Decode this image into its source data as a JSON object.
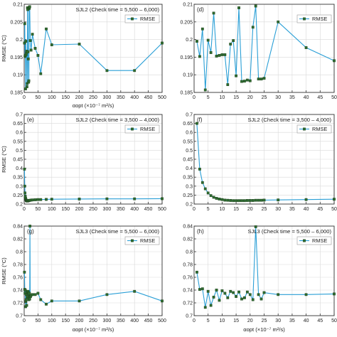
{
  "colors": {
    "line": "#2a9fd6",
    "marker": "#2e6b2e",
    "marker_edge": "#1d3f1d",
    "grid": "#d9d9d9",
    "axis": "#333333"
  },
  "chart_data": [
    {
      "type": "line",
      "panel_label": "",
      "title": "SJL2 (Check time = 5,500 – 6,000)",
      "xlabel": "αopt (×10⁻⁷ m²/s)",
      "ylabel": "RMSE (°C)",
      "xlim": [
        0,
        500
      ],
      "ylim": [
        0.185,
        0.21
      ],
      "xticks": [
        "0",
        "50",
        "100",
        "150",
        "200",
        "250",
        "300",
        "350",
        "400",
        "450",
        "500"
      ],
      "yticks": [
        "0.185",
        "0.19",
        "0.195",
        "0.2",
        "0.205",
        "0.21"
      ],
      "legend": "RMSE",
      "legend_position": "top-right",
      "grid": true,
      "x": [
        1,
        2,
        3,
        4,
        5,
        6,
        7,
        8,
        9,
        10,
        11,
        12,
        13,
        14,
        15,
        16,
        17,
        18,
        19,
        20,
        22,
        25,
        30,
        40,
        50,
        60,
        80,
        100,
        200,
        300,
        400,
        500
      ],
      "y": [
        0.199,
        0.2045,
        0.1952,
        0.1955,
        0.186,
        0.1995,
        0.1957,
        0.1962,
        0.1967,
        0.1866,
        0.1875,
        0.209,
        0.2085,
        0.1965,
        0.1945,
        0.1879,
        0.1883,
        0.2088,
        0.2092,
        0.2093,
        0.1997,
        0.197,
        0.2015,
        0.1975,
        0.1955,
        0.1903,
        0.203,
        0.1985,
        0.1987,
        0.1912,
        0.1912,
        0.199
      ]
    },
    {
      "type": "line",
      "panel_label": "(d)",
      "title": "",
      "xlabel": "",
      "ylabel": "",
      "xlim": [
        0,
        50
      ],
      "ylim": [
        0.185,
        0.21
      ],
      "xticks": [
        "0",
        "5",
        "10",
        "15",
        "20",
        "25",
        "30",
        "35",
        "40",
        "45",
        "50"
      ],
      "yticks": [
        "0.185",
        "0.19",
        "0.195",
        "0.2",
        "0.205",
        "0.21"
      ],
      "legend": "RMSE",
      "legend_position": "top-right",
      "grid": true,
      "x": [
        1,
        2,
        3,
        4,
        5,
        6,
        7,
        8,
        9,
        10,
        11,
        12,
        13,
        14,
        15,
        16,
        17,
        18,
        19,
        20,
        21,
        22,
        23,
        24,
        25,
        30,
        40,
        50
      ],
      "y": [
        0.1995,
        0.1952,
        0.203,
        0.1857,
        0.1998,
        0.1963,
        0.2075,
        0.1953,
        0.1955,
        0.1957,
        0.1957,
        0.1872,
        0.1987,
        0.1997,
        0.1897,
        0.209,
        0.1881,
        0.1882,
        0.1885,
        0.1883,
        0.2035,
        0.2095,
        0.1888,
        0.1888,
        0.189,
        0.205,
        0.1977,
        0.194
      ]
    },
    {
      "type": "line",
      "panel_label": "(e)",
      "title": "SJL2 (Check time = 3,500 – 4,000)",
      "xlabel": "",
      "ylabel": "RMSE (°C)",
      "xlim": [
        0,
        500
      ],
      "ylim": [
        0.2,
        0.7
      ],
      "xticks": [
        "0",
        "50",
        "100",
        "150",
        "200",
        "250",
        "300",
        "350",
        "400",
        "450",
        "500"
      ],
      "yticks": [
        "0.2",
        "0.25",
        "0.3",
        "0.35",
        "0.4",
        "0.45",
        "0.5",
        "0.55",
        "0.6",
        "0.65",
        "0.7"
      ],
      "legend": "RMSE",
      "legend_position": "top-right",
      "grid": true,
      "x": [
        1,
        2,
        3,
        4,
        5,
        6,
        7,
        8,
        9,
        10,
        12,
        14,
        16,
        18,
        20,
        25,
        30,
        40,
        50,
        60,
        80,
        100,
        200,
        300,
        400,
        500
      ],
      "y": [
        0.395,
        0.3,
        0.262,
        0.243,
        0.233,
        0.226,
        0.222,
        0.219,
        0.218,
        0.217,
        0.217,
        0.218,
        0.219,
        0.22,
        0.221,
        0.222,
        0.223,
        0.224,
        0.225,
        0.225,
        0.226,
        0.227,
        0.228,
        0.229,
        0.229,
        0.23
      ]
    },
    {
      "type": "line",
      "panel_label": "(f)",
      "title": "SJL2 (Check time = 3,500 – 4,000)",
      "xlabel": "",
      "ylabel": "",
      "xlim": [
        0,
        50
      ],
      "ylim": [
        0.2,
        0.7
      ],
      "xticks": [
        "0",
        "5",
        "10",
        "15",
        "20",
        "25",
        "30",
        "35",
        "40",
        "45",
        "50"
      ],
      "yticks": [
        "0.2",
        "0.25",
        "0.3",
        "0.35",
        "0.4",
        "0.45",
        "0.5",
        "0.55",
        "0.6",
        "0.65",
        "0.7"
      ],
      "legend": "RMSE",
      "legend_position": "top-right",
      "grid": true,
      "x": [
        1,
        2,
        3,
        4,
        5,
        6,
        7,
        8,
        9,
        10,
        11,
        12,
        13,
        14,
        15,
        16,
        17,
        18,
        19,
        20,
        21,
        22,
        23,
        24,
        25,
        30,
        40,
        50
      ],
      "y": [
        0.65,
        0.395,
        0.32,
        0.285,
        0.262,
        0.247,
        0.238,
        0.232,
        0.228,
        0.225,
        0.222,
        0.221,
        0.22,
        0.219,
        0.219,
        0.219,
        0.219,
        0.219,
        0.22,
        0.22,
        0.22,
        0.221,
        0.221,
        0.221,
        0.222,
        0.223,
        0.225,
        0.227
      ]
    },
    {
      "type": "line",
      "panel_label": "(g)",
      "title": "SJL3 (Check time = 5,500 – 6,000)",
      "xlabel": "αopt (×10⁻⁷ m²/s)",
      "ylabel": "RMSE (°C)",
      "xlim": [
        0,
        500
      ],
      "ylim": [
        0.7,
        0.84
      ],
      "xticks": [
        "0",
        "50",
        "100",
        "150",
        "200",
        "250",
        "300",
        "350",
        "400",
        "450",
        "500"
      ],
      "yticks": [
        "0.7",
        "0.72",
        "0.74",
        "0.76",
        "0.78",
        "0.8",
        "0.82",
        "0.84"
      ],
      "legend": "RMSE",
      "legend_position": "top-right",
      "grid": true,
      "x": [
        1,
        2,
        3,
        4,
        5,
        6,
        7,
        8,
        9,
        10,
        11,
        12,
        13,
        14,
        15,
        16,
        17,
        18,
        19,
        20,
        21,
        22,
        23,
        25,
        30,
        40,
        50,
        60,
        80,
        100,
        200,
        300,
        400,
        500
      ],
      "y": [
        0.768,
        0.741,
        0.735,
        0.74,
        0.714,
        0.722,
        0.725,
        0.733,
        0.716,
        0.737,
        0.729,
        0.73,
        0.733,
        0.738,
        0.736,
        0.734,
        0.725,
        0.728,
        0.735,
        0.726,
        0.84,
        0.73,
        0.73,
        0.732,
        0.733,
        0.733,
        0.735,
        0.725,
        0.718,
        0.723,
        0.723,
        0.733,
        0.738,
        0.723
      ]
    },
    {
      "type": "line",
      "panel_label": "(h)",
      "title": "SJL3 (Check time = 5,500 – 6,000)",
      "xlabel": "αopt (×10⁻⁷ m²/s)",
      "ylabel": "",
      "xlim": [
        0,
        50
      ],
      "ylim": [
        0.7,
        0.84
      ],
      "xticks": [
        "0",
        "5",
        "10",
        "15",
        "20",
        "25",
        "30",
        "35",
        "40",
        "45",
        "50"
      ],
      "yticks": [
        "0.7",
        "0.72",
        "0.74",
        "0.76",
        "0.78",
        "0.8",
        "0.82",
        "0.84"
      ],
      "legend": "RMSE",
      "legend_position": "top-right",
      "grid": true,
      "x": [
        1,
        2,
        3,
        4,
        5,
        6,
        7,
        8,
        9,
        10,
        11,
        12,
        13,
        14,
        15,
        16,
        17,
        18,
        19,
        20,
        21,
        22,
        23,
        24,
        25,
        30,
        40,
        50
      ],
      "y": [
        0.768,
        0.741,
        0.742,
        0.713,
        0.738,
        0.716,
        0.729,
        0.74,
        0.724,
        0.739,
        0.735,
        0.728,
        0.738,
        0.736,
        0.73,
        0.737,
        0.726,
        0.728,
        0.737,
        0.733,
        0.725,
        0.839,
        0.733,
        0.726,
        0.736,
        0.733,
        0.733,
        0.734
      ]
    }
  ]
}
